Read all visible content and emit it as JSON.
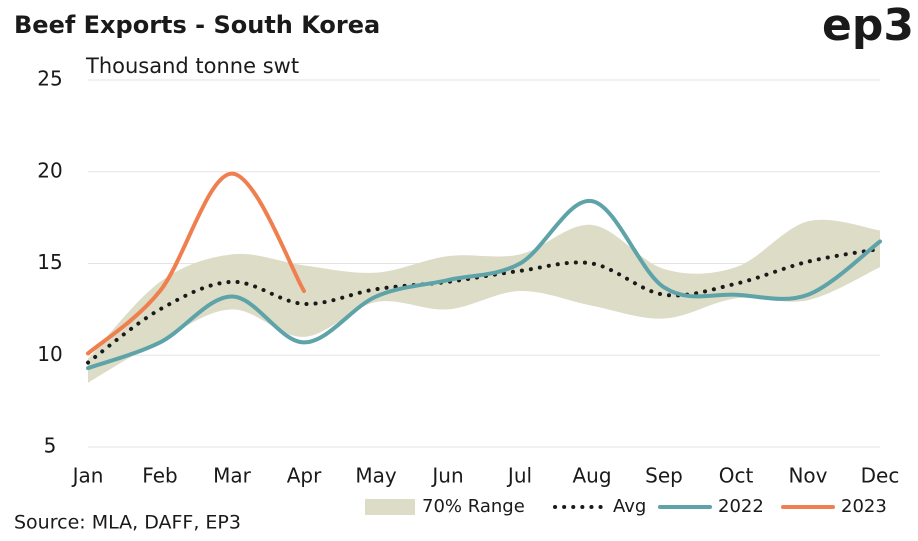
{
  "chart_data": {
    "type": "line",
    "title": "Beef Exports - South Korea",
    "logo": "ep3",
    "y_label": "Thousand tonne swt",
    "source": "Source: MLA, DAFF, EP3",
    "categories": [
      "Jan",
      "Feb",
      "Mar",
      "Apr",
      "May",
      "Jun",
      "Jul",
      "Aug",
      "Sep",
      "Oct",
      "Nov",
      "Dec"
    ],
    "ylim": [
      5,
      25
    ],
    "yticks": [
      5,
      10,
      15,
      20,
      25
    ],
    "grid": true,
    "legend": "bottom",
    "range": {
      "name": "70% Range",
      "color": "#dcdcc7",
      "low": [
        8.5,
        10.8,
        12.5,
        11.0,
        12.9,
        12.5,
        13.5,
        12.7,
        12.0,
        13.1,
        13.0,
        14.8
      ],
      "high": [
        9.8,
        14.0,
        15.5,
        14.9,
        14.5,
        15.4,
        15.5,
        17.1,
        14.7,
        14.8,
        17.3,
        16.8
      ]
    },
    "series": [
      {
        "name": "Avg",
        "color": "#1a1a1a",
        "dotted": true,
        "values": [
          9.6,
          12.5,
          14.0,
          12.8,
          13.6,
          14.0,
          14.6,
          15.0,
          13.3,
          13.9,
          15.1,
          15.8
        ]
      },
      {
        "name": "2022",
        "color": "#5ea3a8",
        "values": [
          9.3,
          10.7,
          13.2,
          10.7,
          13.2,
          14.1,
          15.0,
          18.4,
          13.7,
          13.3,
          13.3,
          16.2
        ]
      },
      {
        "name": "2023",
        "color": "#f07f4f",
        "values": [
          10.1,
          13.5,
          19.9,
          13.5,
          null,
          null,
          null,
          null,
          null,
          null,
          null,
          null
        ]
      }
    ]
  }
}
